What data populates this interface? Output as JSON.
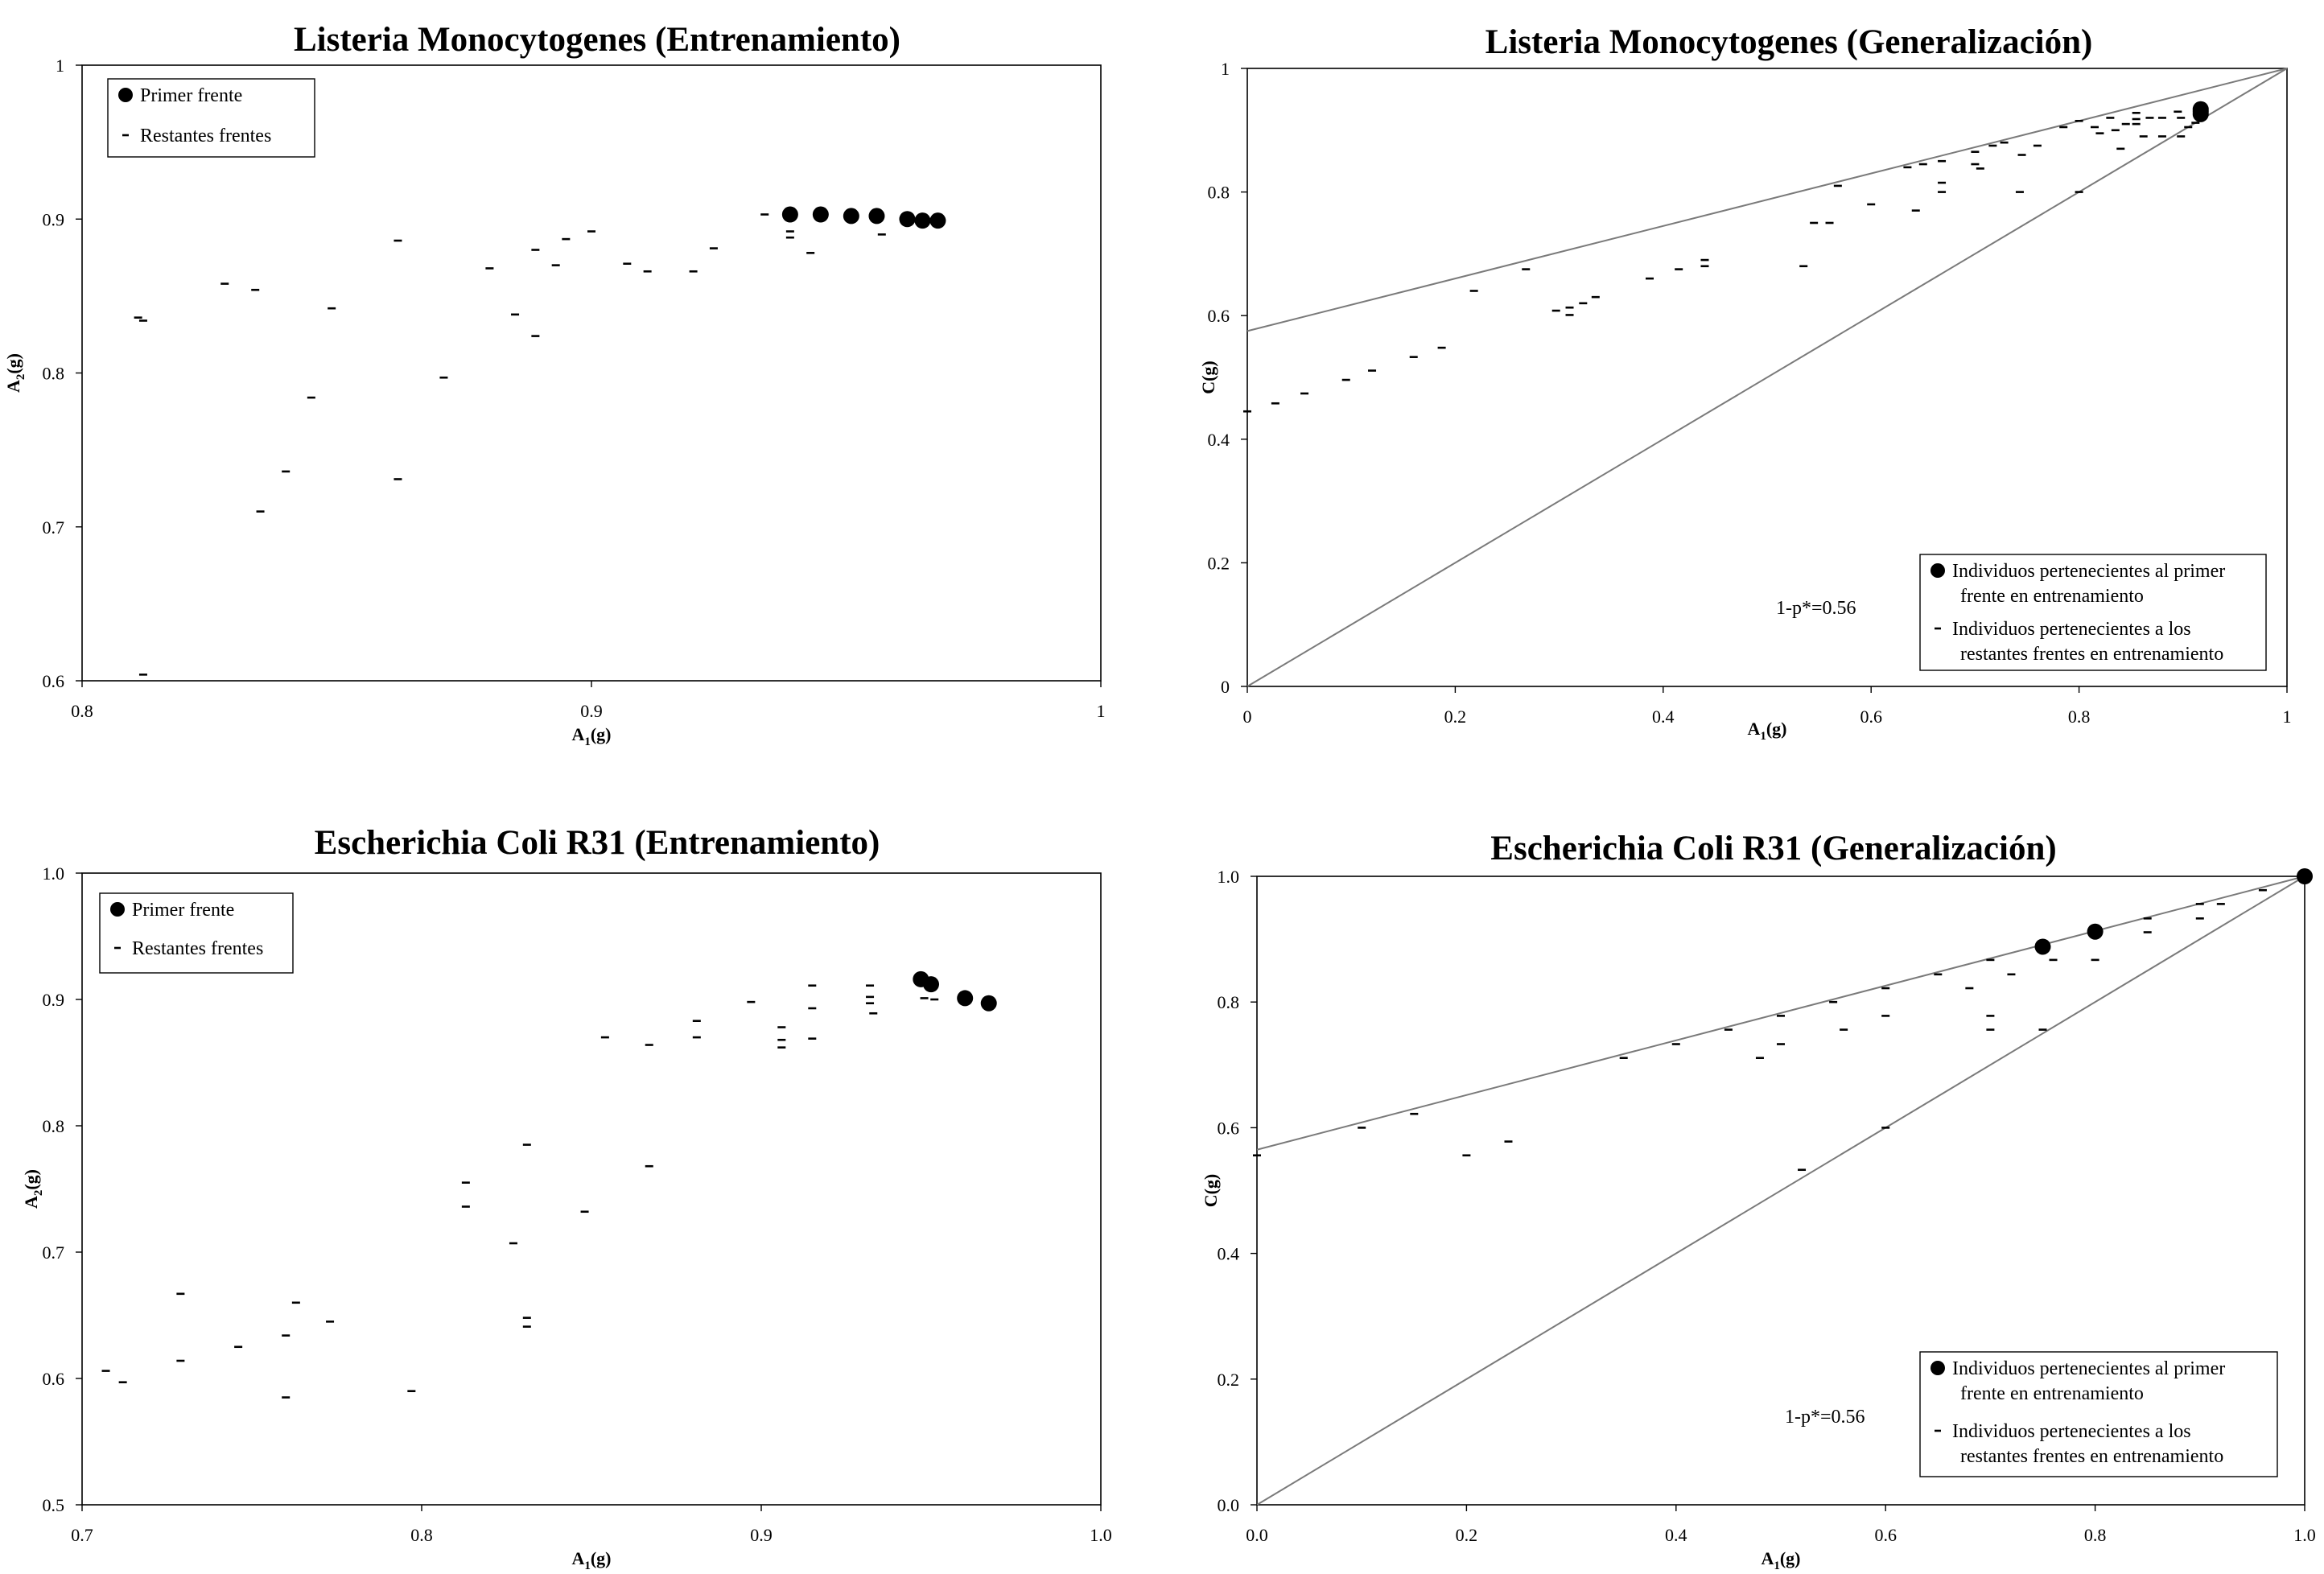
{
  "chart_data": [
    {
      "type": "scatter",
      "title": "Listeria Monocytogenes (Entrenamiento)",
      "xlabel": "A",
      "xlabel_sub": "1",
      "xlabel_suffix": "(g)",
      "ylabel": "A",
      "ylabel_sub": "2",
      "ylabel_suffix": "(g)",
      "xlim": [
        0.8,
        1.0
      ],
      "ylim": [
        0.6,
        1.0
      ],
      "xticks": [
        "0.8",
        "0.9",
        "1"
      ],
      "xtick_values": [
        0.8,
        0.9,
        1.0
      ],
      "yticks": [
        "0.6",
        "0.7",
        "0.8",
        "0.9",
        "1"
      ],
      "ytick_values": [
        0.6,
        0.7,
        0.8,
        0.9,
        1.0
      ],
      "legend": {
        "position": "top-left",
        "entries": [
          "Primer frente",
          "Restantes frentes"
        ]
      },
      "series": [
        {
          "name": "Primer frente",
          "marker": "circle",
          "points": [
            [
              0.939,
              0.903
            ],
            [
              0.945,
              0.903
            ],
            [
              0.951,
              0.902
            ],
            [
              0.956,
              0.902
            ],
            [
              0.962,
              0.9
            ],
            [
              0.965,
              0.899
            ],
            [
              0.968,
              0.899
            ]
          ]
        },
        {
          "name": "Restantes frentes",
          "marker": "dash",
          "points": [
            [
              0.811,
              0.836
            ],
            [
              0.812,
              0.834
            ],
            [
              0.812,
              0.604
            ],
            [
              0.828,
              0.858
            ],
            [
              0.834,
              0.854
            ],
            [
              0.835,
              0.71
            ],
            [
              0.84,
              0.736
            ],
            [
              0.845,
              0.784
            ],
            [
              0.849,
              0.842
            ],
            [
              0.862,
              0.886
            ],
            [
              0.862,
              0.731
            ],
            [
              0.871,
              0.797
            ],
            [
              0.88,
              0.868
            ],
            [
              0.885,
              0.838
            ],
            [
              0.889,
              0.88
            ],
            [
              0.889,
              0.824
            ],
            [
              0.893,
              0.87
            ],
            [
              0.895,
              0.887
            ],
            [
              0.9,
              0.892
            ],
            [
              0.907,
              0.871
            ],
            [
              0.911,
              0.866
            ],
            [
              0.92,
              0.866
            ],
            [
              0.924,
              0.881
            ],
            [
              0.934,
              0.903
            ],
            [
              0.939,
              0.892
            ],
            [
              0.939,
              0.888
            ],
            [
              0.943,
              0.878
            ],
            [
              0.957,
              0.89
            ]
          ]
        }
      ]
    },
    {
      "type": "scatter",
      "title": "Listeria Monocytogenes (Generalización)",
      "xlabel": "A",
      "xlabel_sub": "1",
      "xlabel_suffix": "(g)",
      "ylabel": "C(g)",
      "xlim": [
        0,
        1
      ],
      "ylim": [
        0,
        1
      ],
      "xticks": [
        "0",
        "0.2",
        "0.4",
        "0.6",
        "0.8",
        "1"
      ],
      "xtick_values": [
        0,
        0.2,
        0.4,
        0.6,
        0.8,
        1
      ],
      "yticks": [
        "0",
        "0.2",
        "0.4",
        "0.6",
        "0.8",
        "1"
      ],
      "ytick_values": [
        0,
        0.2,
        0.4,
        0.6,
        0.8,
        1
      ],
      "annotation": "1-p*=0.56",
      "legend": {
        "position": "bottom-right",
        "entries": [
          [
            "Individuos pertenecientes al primer",
            "frente en entrenamiento"
          ],
          [
            "Individuos pertenecientes a los",
            "restantes frentes en entrenamiento"
          ]
        ]
      },
      "lines": [
        {
          "from": [
            0,
            0.575
          ],
          "to": [
            1,
            1
          ]
        },
        {
          "from": [
            0,
            0
          ],
          "to": [
            1,
            1
          ]
        }
      ],
      "series": [
        {
          "name": "Individuos pertenecientes al primer frente en entrenamiento",
          "marker": "circle",
          "points": [
            [
              0.917,
              0.934
            ],
            [
              0.917,
              0.93
            ],
            [
              0.917,
              0.926
            ]
          ]
        },
        {
          "name": "Individuos pertenecientes a los restantes frentes en entrenamiento",
          "marker": "dash",
          "points": [
            [
              0.0,
              0.445
            ],
            [
              0.027,
              0.458
            ],
            [
              0.055,
              0.474
            ],
            [
              0.095,
              0.496
            ],
            [
              0.12,
              0.511
            ],
            [
              0.16,
              0.533
            ],
            [
              0.187,
              0.548
            ],
            [
              0.218,
              0.64
            ],
            [
              0.268,
              0.675
            ],
            [
              0.297,
              0.608
            ],
            [
              0.31,
              0.613
            ],
            [
              0.31,
              0.601
            ],
            [
              0.323,
              0.62
            ],
            [
              0.335,
              0.63
            ],
            [
              0.387,
              0.66
            ],
            [
              0.415,
              0.675
            ],
            [
              0.44,
              0.68
            ],
            [
              0.44,
              0.69
            ],
            [
              0.535,
              0.68
            ],
            [
              0.545,
              0.75
            ],
            [
              0.56,
              0.75
            ],
            [
              0.568,
              0.81
            ],
            [
              0.6,
              0.78
            ],
            [
              0.635,
              0.84
            ],
            [
              0.643,
              0.77
            ],
            [
              0.65,
              0.845
            ],
            [
              0.668,
              0.85
            ],
            [
              0.668,
              0.815
            ],
            [
              0.668,
              0.8
            ],
            [
              0.7,
              0.865
            ],
            [
              0.7,
              0.845
            ],
            [
              0.705,
              0.838
            ],
            [
              0.717,
              0.875
            ],
            [
              0.728,
              0.88
            ],
            [
              0.743,
              0.8
            ],
            [
              0.745,
              0.86
            ],
            [
              0.76,
              0.875
            ],
            [
              0.785,
              0.905
            ],
            [
              0.8,
              0.8
            ],
            [
              0.8,
              0.915
            ],
            [
              0.815,
              0.905
            ],
            [
              0.82,
              0.895
            ],
            [
              0.83,
              0.92
            ],
            [
              0.835,
              0.9
            ],
            [
              0.84,
              0.87
            ],
            [
              0.845,
              0.91
            ],
            [
              0.855,
              0.928
            ],
            [
              0.855,
              0.918
            ],
            [
              0.855,
              0.91
            ],
            [
              0.862,
              0.89
            ],
            [
              0.868,
              0.92
            ],
            [
              0.88,
              0.92
            ],
            [
              0.88,
              0.89
            ],
            [
              0.895,
              0.93
            ],
            [
              0.898,
              0.92
            ],
            [
              0.898,
              0.89
            ],
            [
              0.905,
              0.905
            ],
            [
              0.912,
              0.912
            ]
          ]
        }
      ]
    },
    {
      "type": "scatter",
      "title": "Escherichia Coli R31 (Entrenamiento)",
      "xlabel": "A",
      "xlabel_sub": "1",
      "xlabel_suffix": "(g)",
      "ylabel": "A",
      "ylabel_sub": "2",
      "ylabel_suffix": "(g)",
      "xlim": [
        0.7,
        1.0
      ],
      "ylim": [
        0.5,
        1.0
      ],
      "xticks": [
        "0.7",
        "0.8",
        "0.9",
        "1.0"
      ],
      "xtick_values": [
        0.7,
        0.8,
        0.9,
        1.0
      ],
      "yticks": [
        "0.5",
        "0.6",
        "0.7",
        "0.8",
        "0.9",
        "1.0"
      ],
      "ytick_values": [
        0.5,
        0.6,
        0.7,
        0.8,
        0.9,
        1.0
      ],
      "legend": {
        "position": "top-left",
        "entries": [
          "Primer frente",
          "Restantes frentes"
        ]
      },
      "series": [
        {
          "name": "Primer frente",
          "marker": "circle",
          "points": [
            [
              0.947,
              0.916
            ],
            [
              0.95,
              0.912
            ],
            [
              0.96,
              0.901
            ],
            [
              0.967,
              0.897
            ]
          ]
        },
        {
          "name": "Restantes frentes",
          "marker": "dash",
          "points": [
            [
              0.707,
              0.606
            ],
            [
              0.712,
              0.597
            ],
            [
              0.729,
              0.667
            ],
            [
              0.729,
              0.614
            ],
            [
              0.746,
              0.625
            ],
            [
              0.76,
              0.634
            ],
            [
              0.76,
              0.585
            ],
            [
              0.763,
              0.66
            ],
            [
              0.773,
              0.645
            ],
            [
              0.797,
              0.59
            ],
            [
              0.813,
              0.755
            ],
            [
              0.813,
              0.736
            ],
            [
              0.827,
              0.707
            ],
            [
              0.831,
              0.785
            ],
            [
              0.831,
              0.648
            ],
            [
              0.831,
              0.641
            ],
            [
              0.848,
              0.732
            ],
            [
              0.854,
              0.87
            ],
            [
              0.867,
              0.864
            ],
            [
              0.867,
              0.768
            ],
            [
              0.881,
              0.883
            ],
            [
              0.881,
              0.87
            ],
            [
              0.897,
              0.898
            ],
            [
              0.906,
              0.878
            ],
            [
              0.906,
              0.868
            ],
            [
              0.906,
              0.862
            ],
            [
              0.915,
              0.911
            ],
            [
              0.915,
              0.893
            ],
            [
              0.915,
              0.869
            ],
            [
              0.932,
              0.911
            ],
            [
              0.932,
              0.902
            ],
            [
              0.932,
              0.897
            ],
            [
              0.933,
              0.889
            ],
            [
              0.948,
              0.901
            ],
            [
              0.951,
              0.9
            ]
          ]
        }
      ]
    },
    {
      "type": "scatter",
      "title": "Escherichia Coli R31 (Generalización)",
      "xlabel": "A",
      "xlabel_sub": "1",
      "xlabel_suffix": "(g)",
      "ylabel": "C(g)",
      "xlim": [
        0,
        1
      ],
      "ylim": [
        0,
        1
      ],
      "xticks": [
        "0.0",
        "0.2",
        "0.4",
        "0.6",
        "0.8",
        "1.0"
      ],
      "xtick_values": [
        0,
        0.2,
        0.4,
        0.6,
        0.8,
        1
      ],
      "yticks": [
        "0.0",
        "0.2",
        "0.4",
        "0.6",
        "0.8",
        "1.0"
      ],
      "ytick_values": [
        0,
        0.2,
        0.4,
        0.6,
        0.8,
        1
      ],
      "annotation": "1-p*=0.56",
      "legend": {
        "position": "bottom-right",
        "entries": [
          [
            "Individuos pertenecientes al primer",
            "frente en entrenamiento"
          ],
          [
            "Individuos pertenecientes a los",
            "restantes frentes en entrenamiento"
          ]
        ]
      },
      "lines": [
        {
          "from": [
            0,
            0.565
          ],
          "to": [
            1,
            1
          ]
        },
        {
          "from": [
            0,
            0
          ],
          "to": [
            1,
            1
          ]
        }
      ],
      "series": [
        {
          "name": "Individuos pertenecientes al primer frente en entrenamiento",
          "marker": "circle",
          "points": [
            [
              0.75,
              0.888
            ],
            [
              0.8,
              0.912
            ],
            [
              1.0,
              1.0
            ]
          ]
        },
        {
          "name": "Individuos pertenecientes a los restantes frentes en entrenamiento",
          "marker": "dash",
          "points": [
            [
              0.0,
              0.556
            ],
            [
              0.1,
              0.6
            ],
            [
              0.15,
              0.622
            ],
            [
              0.2,
              0.556
            ],
            [
              0.24,
              0.578
            ],
            [
              0.35,
              0.711
            ],
            [
              0.4,
              0.733
            ],
            [
              0.45,
              0.756
            ],
            [
              0.48,
              0.711
            ],
            [
              0.5,
              0.778
            ],
            [
              0.5,
              0.733
            ],
            [
              0.52,
              0.533
            ],
            [
              0.55,
              0.8
            ],
            [
              0.56,
              0.756
            ],
            [
              0.6,
              0.822
            ],
            [
              0.6,
              0.778
            ],
            [
              0.6,
              0.6
            ],
            [
              0.65,
              0.844
            ],
            [
              0.68,
              0.822
            ],
            [
              0.7,
              0.867
            ],
            [
              0.7,
              0.778
            ],
            [
              0.7,
              0.756
            ],
            [
              0.72,
              0.844
            ],
            [
              0.75,
              0.756
            ],
            [
              0.76,
              0.867
            ],
            [
              0.8,
              0.867
            ],
            [
              0.85,
              0.933
            ],
            [
              0.85,
              0.911
            ],
            [
              0.9,
              0.956
            ],
            [
              0.9,
              0.933
            ],
            [
              0.92,
              0.956
            ],
            [
              0.96,
              0.978
            ]
          ]
        }
      ]
    }
  ]
}
